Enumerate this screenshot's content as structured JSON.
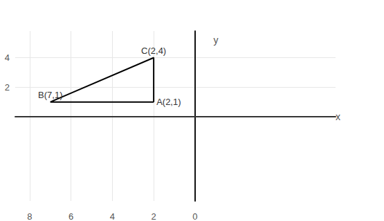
{
  "chart_data": {
    "type": "line",
    "x": [
      2,
      7,
      2
    ],
    "values": [
      1,
      1,
      4
    ],
    "value_labels": [
      "A(2,1)",
      "B(7,1)",
      "C(2,4)"
    ],
    "data_labels": true,
    "color": "#000000",
    "x_label": "x",
    "y_label": "y",
    "xlim": [
      -6.8,
      8.7
    ],
    "ylim": [
      -5.7,
      5.8
    ],
    "xticks": [
      8,
      6,
      4,
      2,
      0
    ],
    "yticks": [
      2,
      4
    ],
    "grid": true
  }
}
